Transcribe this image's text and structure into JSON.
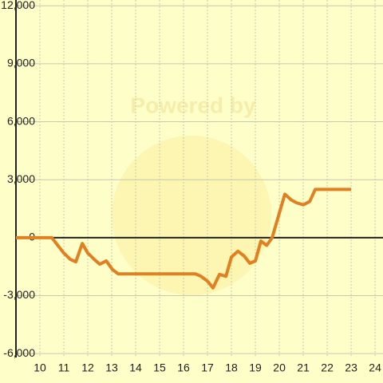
{
  "chart_data": {
    "type": "line",
    "watermark": "Powered by",
    "x": [
      9,
      10,
      10.5,
      10.73,
      11,
      11.27,
      11.5,
      11.77,
      12,
      12.27,
      12.5,
      12.77,
      13.03,
      13.27,
      16.5,
      16.73,
      17,
      17.23,
      17.5,
      17.77,
      18,
      18.27,
      18.53,
      18.77,
      19,
      19.23,
      19.47,
      19.7,
      19.97,
      20.23,
      20.5,
      20.73,
      21,
      21.27,
      21.5,
      23
    ],
    "series": [
      {
        "color": "#e08020",
        "values": [
          0,
          0,
          0,
          -375,
          -800,
          -1125,
          -1250,
          -300,
          -800,
          -1125,
          -1375,
          -1200,
          -1650,
          -1875,
          -1875,
          -2000,
          -2250,
          -2600,
          -1900,
          -2000,
          -1000,
          -700,
          -950,
          -1325,
          -1200,
          -175,
          -400,
          0,
          1150,
          2250,
          1950,
          1800,
          1700,
          1875,
          2500,
          2500
        ]
      }
    ],
    "xlim": [
      9,
      24.33
    ],
    "xticks": [
      10,
      11,
      12,
      13,
      14,
      15,
      16,
      17,
      18,
      19,
      20,
      21,
      22,
      23,
      24
    ],
    "ylim": [
      -6200,
      12300
    ],
    "yticks": [
      {
        "value": 12000,
        "label": "12,000"
      },
      {
        "value": 9000,
        "label": "9,000"
      },
      {
        "value": 6000,
        "label": "6,000"
      },
      {
        "value": 3000,
        "label": "3,000"
      },
      0,
      {
        "value": -3000,
        "label": "-3,000"
      },
      {
        "value": -6000,
        "label": "-6,000"
      }
    ],
    "grid": true
  }
}
